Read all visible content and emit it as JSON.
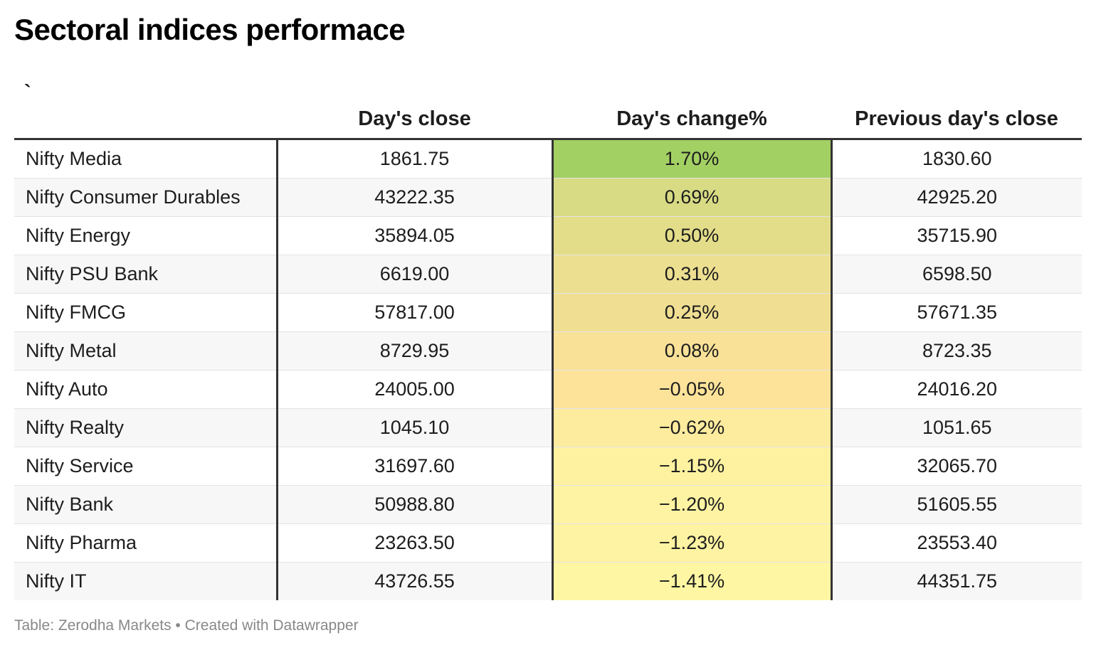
{
  "title": "Sectoral indices performace",
  "chart_data": {
    "type": "table",
    "columns": [
      "`",
      "Day's close",
      "Day's change%",
      "Previous day's close"
    ],
    "rows": [
      {
        "name": "Nifty Media",
        "close": "1861.75",
        "change": "1.70%",
        "prev": "1830.60",
        "change_value": 1.7
      },
      {
        "name": "Nifty Consumer Durables",
        "close": "43222.35",
        "change": "0.69%",
        "prev": "42925.20",
        "change_value": 0.69
      },
      {
        "name": "Nifty Energy",
        "close": "35894.05",
        "change": "0.50%",
        "prev": "35715.90",
        "change_value": 0.5
      },
      {
        "name": "Nifty PSU Bank",
        "close": "6619.00",
        "change": "0.31%",
        "prev": "6598.50",
        "change_value": 0.31
      },
      {
        "name": "Nifty FMCG",
        "close": "57817.00",
        "change": "0.25%",
        "prev": "57671.35",
        "change_value": 0.25
      },
      {
        "name": "Nifty Metal",
        "close": "8729.95",
        "change": "0.08%",
        "prev": "8723.35",
        "change_value": 0.08
      },
      {
        "name": "Nifty Auto",
        "close": "24005.00",
        "change": "−0.05%",
        "prev": "24016.20",
        "change_value": -0.05
      },
      {
        "name": "Nifty Realty",
        "close": "1045.10",
        "change": "−0.62%",
        "prev": "1051.65",
        "change_value": -0.62
      },
      {
        "name": "Nifty Service",
        "close": "31697.60",
        "change": "−1.15%",
        "prev": "32065.70",
        "change_value": -1.15
      },
      {
        "name": "Nifty Bank",
        "close": "50988.80",
        "change": "−1.20%",
        "prev": "51605.55",
        "change_value": -1.2
      },
      {
        "name": "Nifty Pharma",
        "close": "23263.50",
        "change": "−1.23%",
        "prev": "23553.40",
        "change_value": -1.23
      },
      {
        "name": "Nifty IT",
        "close": "43726.55",
        "change": "−1.41%",
        "prev": "44351.75",
        "change_value": -1.41
      }
    ],
    "heatmap_column": "Day's change%",
    "colors": {
      "high": "#a3d063",
      "mid": "#fde29a",
      "low": "#fef6a3"
    }
  },
  "footer": "Table: Zerodha Markets • Created with Datawrapper"
}
